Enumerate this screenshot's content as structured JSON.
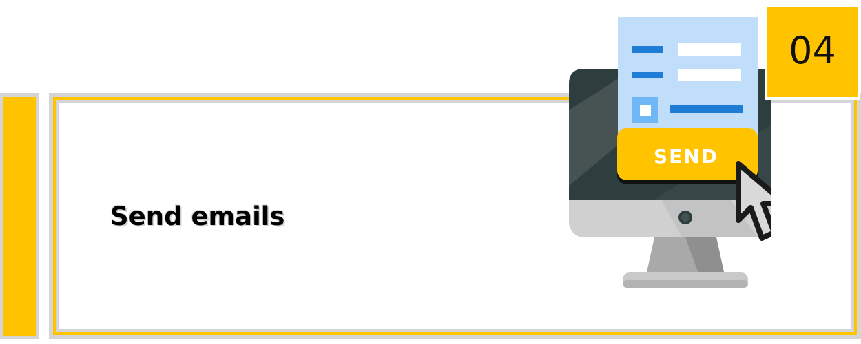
{
  "step": {
    "number": "04",
    "title": "Send emails"
  },
  "illustration": {
    "button_label": "SEND",
    "icons": [
      "monitor-icon",
      "email-form-icon",
      "checkbox-icon",
      "cursor-arrow-icon"
    ]
  },
  "colors": {
    "accent": "#ffc300",
    "border_gray": "#d5d5d5",
    "form_background": "#c0defa",
    "form_accent": "#1e7bd6",
    "screen_dark": "#2d3b3b",
    "monitor_body": "#cdcdcd"
  }
}
